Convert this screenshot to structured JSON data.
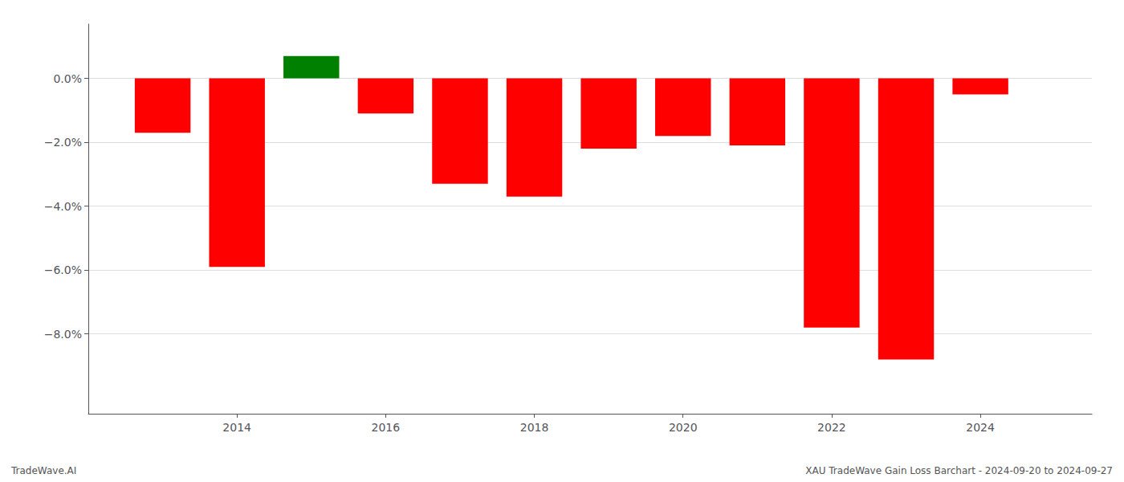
{
  "chart_data": {
    "type": "bar",
    "x": [
      2013,
      2014,
      2015,
      2016,
      2017,
      2018,
      2019,
      2020,
      2021,
      2022,
      2023,
      2024
    ],
    "values": [
      -0.017,
      -0.059,
      0.007,
      -0.011,
      -0.033,
      -0.037,
      -0.022,
      -0.018,
      -0.021,
      -0.078,
      -0.088,
      -0.005
    ],
    "colors": [
      "#ff0000",
      "#ff0000",
      "#008000",
      "#ff0000",
      "#ff0000",
      "#ff0000",
      "#ff0000",
      "#ff0000",
      "#ff0000",
      "#ff0000",
      "#ff0000",
      "#ff0000"
    ],
    "ylim": [
      -0.105,
      0.017
    ],
    "yticks": [
      {
        "value": 0.0,
        "label": "0.0%"
      },
      {
        "value": -0.02,
        "label": "−2.0%"
      },
      {
        "value": -0.04,
        "label": "−4.0%"
      },
      {
        "value": -0.06,
        "label": "−6.0%"
      },
      {
        "value": -0.08,
        "label": "−8.0%"
      }
    ],
    "xlim": [
      2012.0,
      2025.5
    ],
    "xticks": [
      2014,
      2016,
      2018,
      2020,
      2022,
      2024
    ],
    "annotations": [
      "TradeWave.AI",
      "XAU TradeWave Gain Loss Barchart - 2024-09-20 to 2024-09-27"
    ],
    "grid": true
  }
}
